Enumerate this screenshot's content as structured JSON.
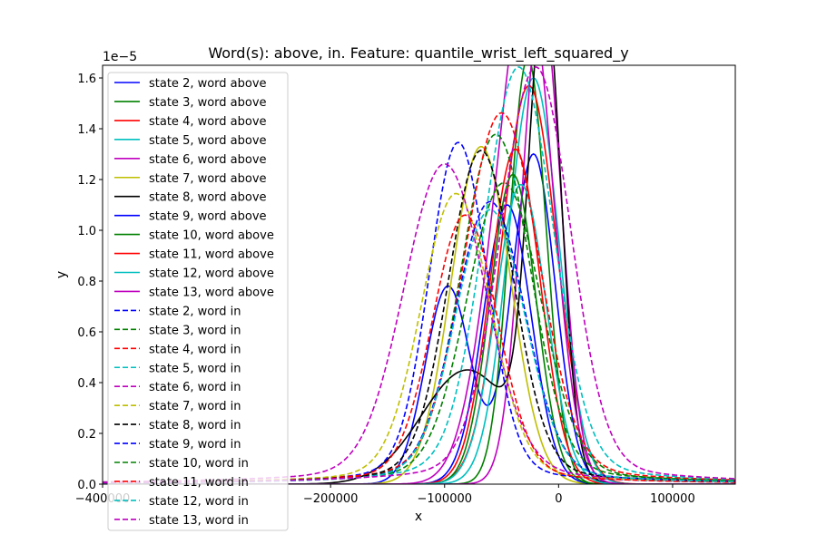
{
  "chart_data": {
    "type": "line",
    "title": "Word(s): above, in. Feature: quantile_wrist_left_squared_y",
    "xlabel": "x",
    "ylabel": "y",
    "y_multiplier_label": "1e−5",
    "xlim": [
      -400000,
      155000
    ],
    "ylim": [
      0,
      1.65
    ],
    "x_ticks": [
      -400000,
      -200000,
      -100000,
      0,
      100000
    ],
    "x_tick_labels": [
      "−400000",
      "−200000",
      "−100000",
      "0",
      "100000"
    ],
    "y_ticks": [
      0.0,
      0.2,
      0.4,
      0.6,
      0.8,
      1.0,
      1.2,
      1.4,
      1.6
    ],
    "y_tick_labels": [
      "0.0",
      "0.2",
      "0.4",
      "0.6",
      "0.8",
      "1.0",
      "1.2",
      "1.4",
      "1.6"
    ],
    "grid": false,
    "legend_position": "upper-left",
    "series": [
      {
        "name": "state 2, word above",
        "color": "#0000ff",
        "style": "solid",
        "components": [
          [
            -97000,
            20000,
            0.78
          ],
          [
            -22000,
            19000,
            1.3
          ]
        ]
      },
      {
        "name": "state 3, word above",
        "color": "#008000",
        "style": "solid",
        "components": [
          [
            -27000,
            16000,
            1.68
          ]
        ]
      },
      {
        "name": "state 4, word above",
        "color": "#ff0000",
        "style": "solid",
        "components": [
          [
            -26000,
            24000,
            1.57
          ]
        ]
      },
      {
        "name": "state 5, word above",
        "color": "#00bfbf",
        "style": "solid",
        "components": [
          [
            -22000,
            22000,
            1.6
          ]
        ]
      },
      {
        "name": "state 6, word above",
        "color": "#bf00bf",
        "style": "solid",
        "components": [
          [
            -15000,
            17000,
            1.9
          ]
        ]
      },
      {
        "name": "state 7, word above",
        "color": "#bfbf00",
        "style": "solid",
        "components": [
          [
            -68000,
            26000,
            1.33
          ]
        ]
      },
      {
        "name": "state 8, word above",
        "color": "#000000",
        "style": "solid",
        "components": [
          [
            -80000,
            40000,
            0.45
          ],
          [
            -12000,
            14000,
            1.85
          ]
        ]
      },
      {
        "name": "state 9, word above",
        "color": "#0000ff",
        "style": "solid",
        "components": [
          [
            -45000,
            21000,
            1.1
          ]
        ]
      },
      {
        "name": "state 10, word above",
        "color": "#008000",
        "style": "solid",
        "components": [
          [
            -40000,
            20000,
            1.22
          ]
        ]
      },
      {
        "name": "state 11, word above",
        "color": "#ff0000",
        "style": "solid",
        "components": [
          [
            -38000,
            22000,
            1.32
          ]
        ]
      },
      {
        "name": "state 12, word above",
        "color": "#00bfbf",
        "style": "solid",
        "components": [
          [
            -33000,
            22000,
            1.18
          ]
        ]
      },
      {
        "name": "state 13, word above",
        "color": "#bf00bf",
        "style": "solid",
        "components": [
          [
            -45000,
            25000,
            0.95
          ],
          [
            -22000,
            20000,
            1.3
          ]
        ]
      },
      {
        "name": "state 2, word in",
        "color": "#0000ff",
        "style": "dashed",
        "components": [
          [
            -88000,
            25000,
            1.27
          ]
        ]
      },
      {
        "name": "state 3, word in",
        "color": "#008000",
        "style": "dashed",
        "components": [
          [
            -55000,
            30000,
            1.3
          ]
        ]
      },
      {
        "name": "state 4, word in",
        "color": "#ff0000",
        "style": "dashed",
        "components": [
          [
            -50000,
            32000,
            1.38
          ]
        ]
      },
      {
        "name": "state 5, word in",
        "color": "#00bfbf",
        "style": "dashed",
        "components": [
          [
            -35000,
            30000,
            1.55
          ]
        ]
      },
      {
        "name": "state 6, word in",
        "color": "#bf00bf",
        "style": "dashed",
        "components": [
          [
            -100000,
            35000,
            1.19
          ]
        ]
      },
      {
        "name": "state 7, word in",
        "color": "#bfbf00",
        "style": "dashed",
        "components": [
          [
            -90000,
            30000,
            1.08
          ]
        ]
      },
      {
        "name": "state 8, word in",
        "color": "#000000",
        "style": "dashed",
        "components": [
          [
            -68000,
            28000,
            1.24
          ]
        ]
      },
      {
        "name": "state 9, word in",
        "color": "#0000ff",
        "style": "dashed",
        "components": [
          [
            -60000,
            30000,
            1.05
          ]
        ]
      },
      {
        "name": "state 10, word in",
        "color": "#008000",
        "style": "dashed",
        "components": [
          [
            -48000,
            32000,
            1.12
          ]
        ]
      },
      {
        "name": "state 11, word in",
        "color": "#ff0000",
        "style": "dashed",
        "components": [
          [
            -82000,
            28000,
            1.0
          ]
        ]
      },
      {
        "name": "state 12, word in",
        "color": "#00bfbf",
        "style": "dashed",
        "components": [
          [
            -60000,
            30000,
            1.02
          ]
        ]
      },
      {
        "name": "state 13, word in",
        "color": "#bf00bf",
        "style": "dashed",
        "components": [
          [
            -20000,
            30000,
            1.55
          ]
        ]
      }
    ]
  }
}
